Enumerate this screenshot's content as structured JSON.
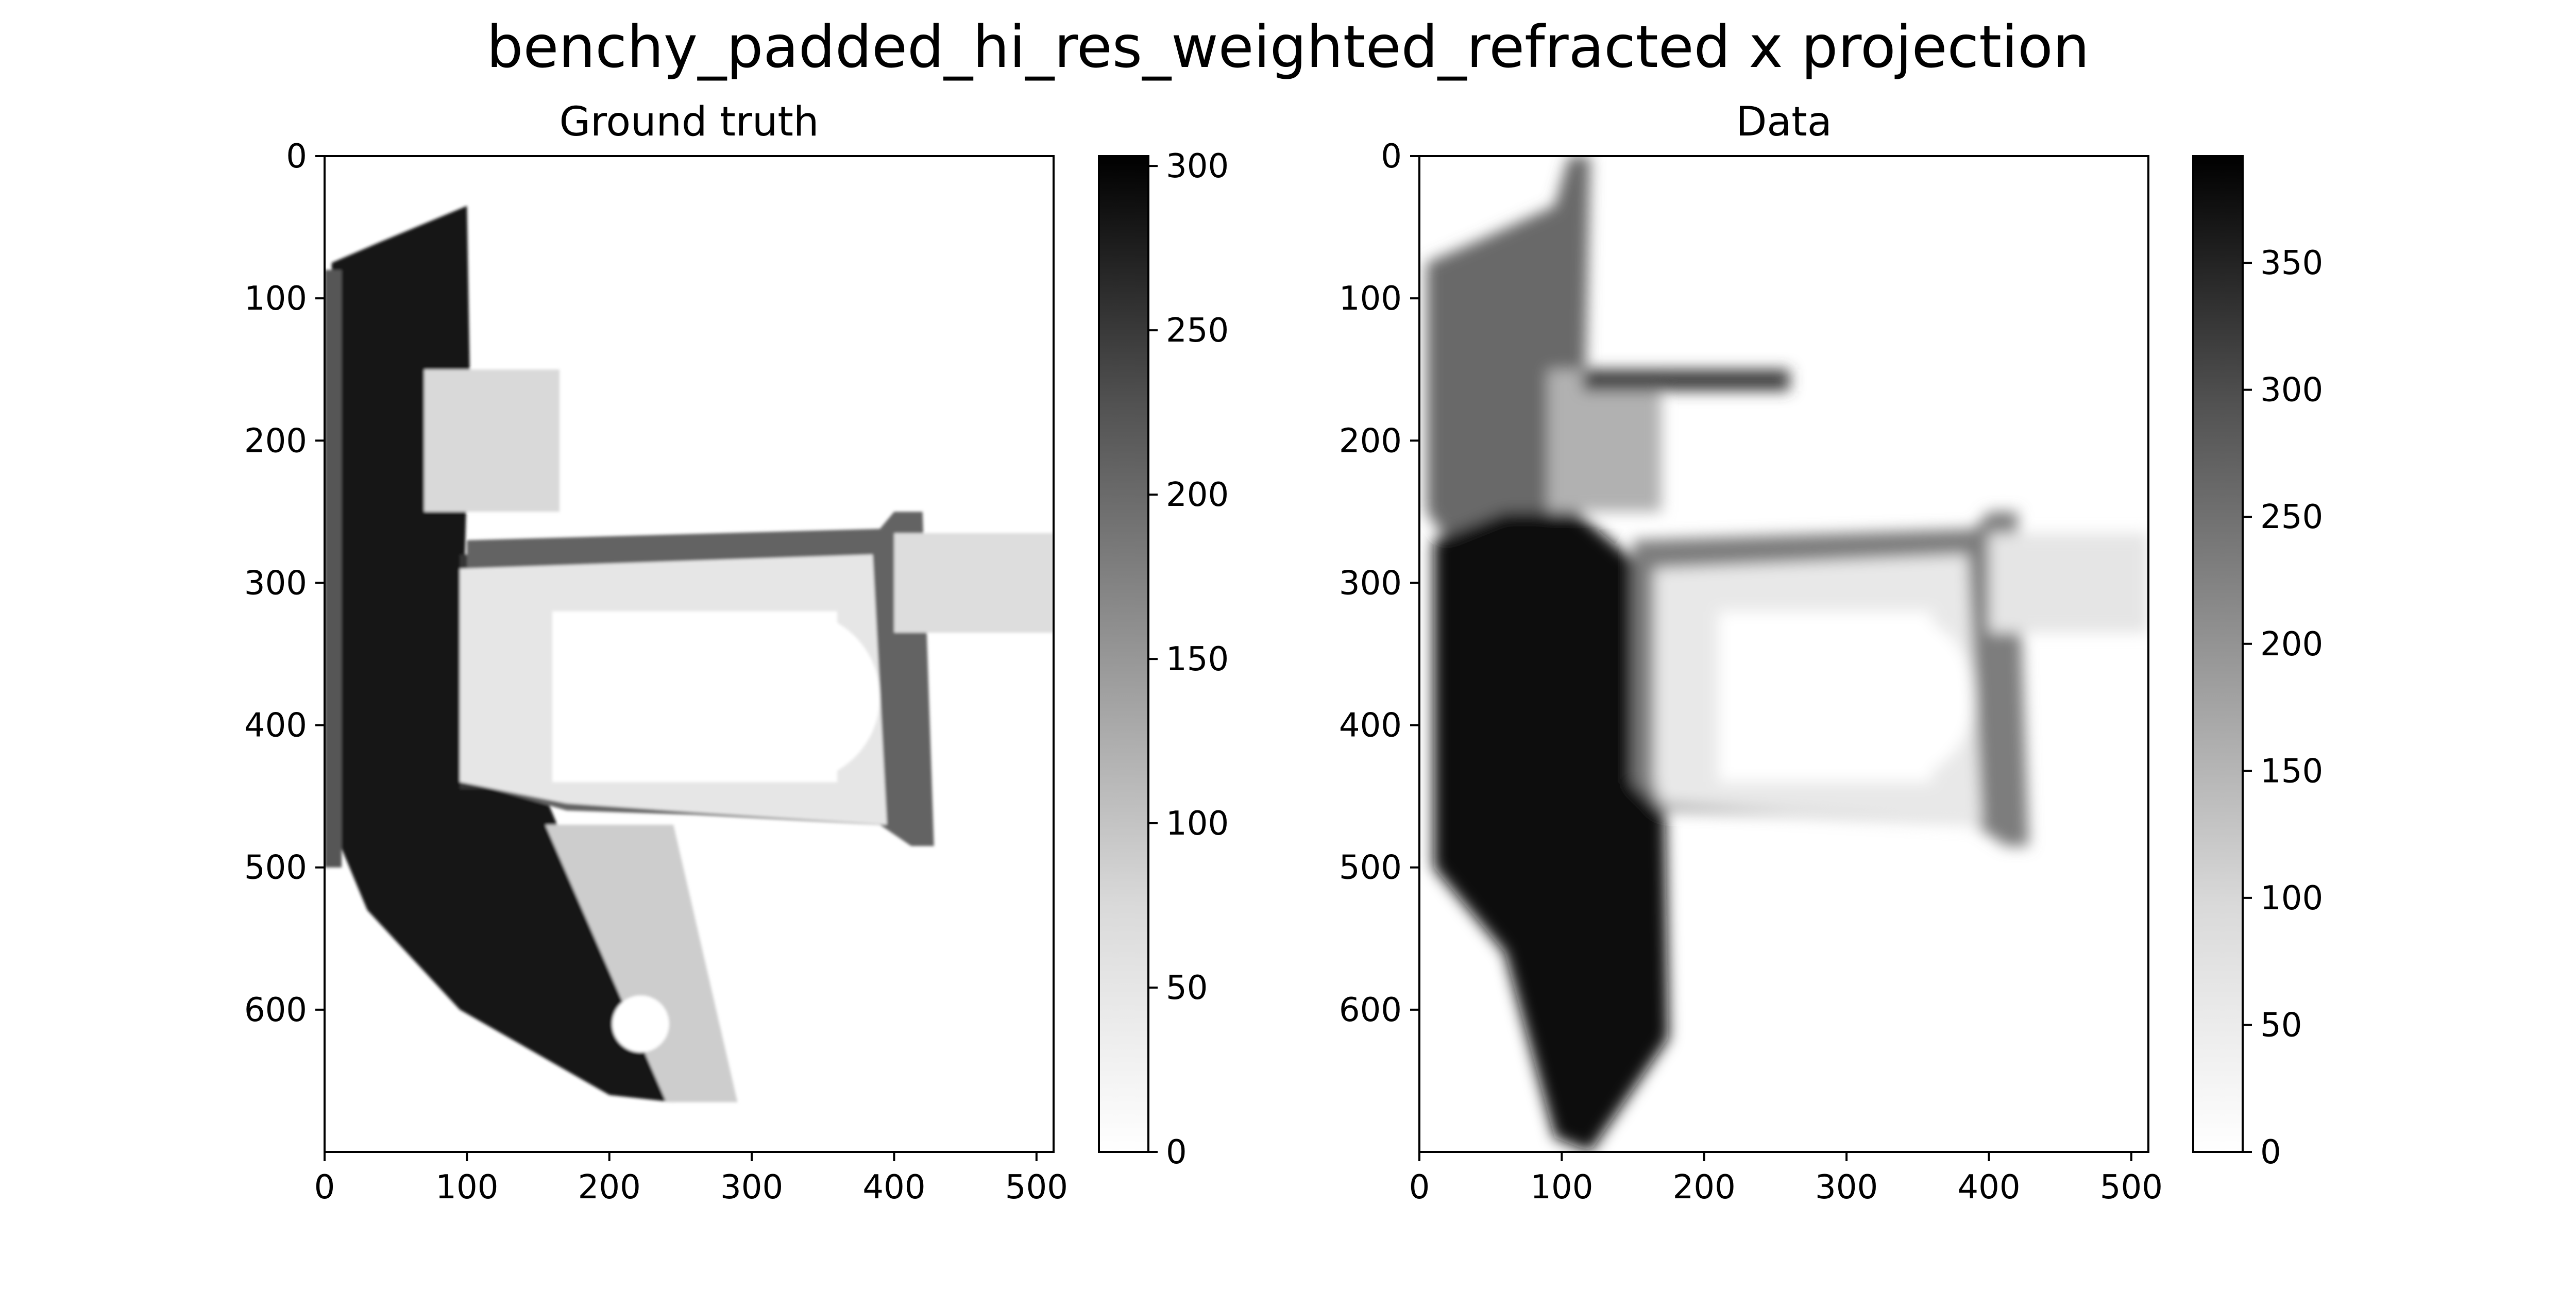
{
  "chart_data": {
    "type": "heatmap",
    "title": "benchy_padded_hi_res_weighted_refracted x projection",
    "colormap": "Greys",
    "panels": [
      {
        "title": "Ground truth",
        "xlim": [
          0,
          512
        ],
        "ylim": [
          700,
          0
        ],
        "xticks": [
          0,
          100,
          200,
          300,
          400,
          500
        ],
        "yticks": [
          0,
          100,
          200,
          300,
          400,
          500,
          600
        ],
        "colorbar": {
          "min": 0,
          "max": 303,
          "ticks": [
            0,
            50,
            100,
            150,
            200,
            250,
            300
          ]
        },
        "regions": [
          {
            "kind": "poly",
            "points": [
              [
                5,
                75
              ],
              [
                40,
                60
              ],
              [
                100,
                35
              ],
              [
                102,
                155
              ],
              [
                95,
                410
              ],
              [
                155,
                450
              ],
              [
                245,
                665
              ],
              [
                200,
                660
              ],
              [
                95,
                600
              ],
              [
                30,
                530
              ],
              [
                5,
                470
              ]
            ],
            "value": 280
          },
          {
            "kind": "rect",
            "x": [
              0,
              12
            ],
            "y": [
              80,
              500
            ],
            "value": 200
          },
          {
            "kind": "poly",
            "points": [
              [
                95,
                280
              ],
              [
                145,
                282
              ],
              [
                165,
                300
              ],
              [
                165,
                445
              ],
              [
                95,
                445
              ]
            ],
            "value": 240
          },
          {
            "kind": "poly",
            "points": [
              [
                100,
                270
              ],
              [
                390,
                262
              ],
              [
                400,
                250
              ],
              [
                420,
                250
              ],
              [
                428,
                485
              ],
              [
                412,
                485
              ],
              [
                390,
                470
              ],
              [
                260,
                463
              ],
              [
                170,
                460
              ],
              [
                100,
                440
              ]
            ],
            "value": 185
          },
          {
            "kind": "poly",
            "points": [
              [
                95,
                290
              ],
              [
                385,
                280
              ],
              [
                395,
                470
              ],
              [
                270,
                462
              ],
              [
                170,
                455
              ],
              [
                95,
                440
              ]
            ],
            "value": 30
          },
          {
            "kind": "rect",
            "x": [
              160,
              360
            ],
            "y": [
              320,
              440
            ],
            "value": 0
          },
          {
            "kind": "circle",
            "cx": 330,
            "cy": 380,
            "r": 60,
            "value": 0
          },
          {
            "kind": "rect",
            "x": [
              400,
              512
            ],
            "y": [
              265,
              335
            ],
            "value": 40
          },
          {
            "kind": "rect",
            "x": [
              70,
              165
            ],
            "y": [
              150,
              250
            ],
            "value": 45
          },
          {
            "kind": "poly",
            "points": [
              [
                155,
                470
              ],
              [
                245,
                470
              ],
              [
                290,
                665
              ],
              [
                240,
                665
              ]
            ],
            "value": 60
          },
          {
            "kind": "circle",
            "cx": 222,
            "cy": 610,
            "r": 20,
            "value": 0
          }
        ]
      },
      {
        "title": "Data",
        "xlim": [
          0,
          512
        ],
        "ylim": [
          700,
          0
        ],
        "xticks": [
          0,
          100,
          200,
          300,
          400,
          500
        ],
        "yticks": [
          0,
          100,
          200,
          300,
          400,
          500,
          600
        ],
        "colorbar": {
          "min": 0,
          "max": 392,
          "ticks": [
            0,
            50,
            100,
            150,
            200,
            250,
            300,
            350
          ]
        },
        "regions": [
          {
            "kind": "poly",
            "points": [
              [
                5,
                75
              ],
              [
                40,
                60
              ],
              [
                95,
                35
              ],
              [
                105,
                0
              ],
              [
                120,
                0
              ],
              [
                115,
                240
              ],
              [
                95,
                330
              ],
              [
                40,
                300
              ],
              [
                5,
                250
              ]
            ],
            "value": 230
          },
          {
            "kind": "poly",
            "points": [
              [
                10,
                270
              ],
              [
                60,
                250
              ],
              [
                110,
                250
              ],
              [
                170,
                300
              ],
              [
                175,
                620
              ],
              [
                120,
                700
              ],
              [
                95,
                690
              ],
              [
                60,
                560
              ],
              [
                10,
                500
              ]
            ],
            "value": 380
          },
          {
            "kind": "rect",
            "x": [
              90,
              170
            ],
            "y": [
              150,
              250
            ],
            "value": 120
          },
          {
            "kind": "poly",
            "points": [
              [
                150,
                270
              ],
              [
                390,
                262
              ],
              [
                400,
                250
              ],
              [
                420,
                250
              ],
              [
                428,
                485
              ],
              [
                412,
                485
              ],
              [
                390,
                470
              ],
              [
                260,
                463
              ],
              [
                170,
                460
              ],
              [
                150,
                440
              ]
            ],
            "value": 200
          },
          {
            "kind": "poly",
            "points": [
              [
                165,
                290
              ],
              [
                385,
                280
              ],
              [
                395,
                470
              ],
              [
                270,
                462
              ],
              [
                170,
                455
              ],
              [
                165,
                440
              ]
            ],
            "value": 35
          },
          {
            "kind": "rect",
            "x": [
              210,
              360
            ],
            "y": [
              320,
              440
            ],
            "value": 0
          },
          {
            "kind": "circle",
            "cx": 330,
            "cy": 380,
            "r": 60,
            "value": 0
          },
          {
            "kind": "rect",
            "x": [
              400,
              512
            ],
            "y": [
              265,
              335
            ],
            "value": 40
          },
          {
            "kind": "rect",
            "x": [
              115,
              260
            ],
            "y": [
              150,
              165
            ],
            "value": 300
          }
        ]
      }
    ]
  }
}
